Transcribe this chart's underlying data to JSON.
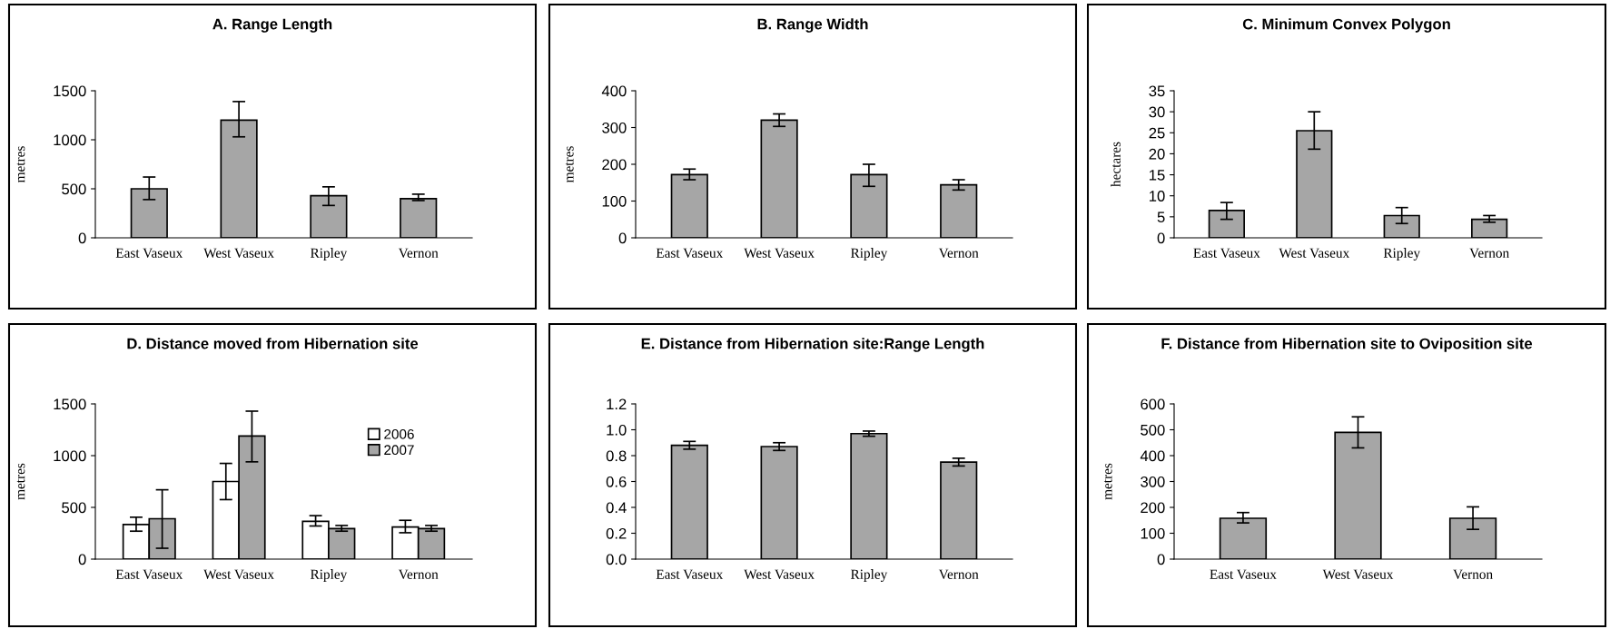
{
  "chart_data": [
    {
      "type": "bar",
      "title": "A. Range Length",
      "ylabel": "metres",
      "categories": [
        "East Vaseux",
        "West Vaseux",
        "Ripley",
        "Vernon"
      ],
      "color": "#a6a6a6",
      "values": [
        500,
        1200,
        430,
        400
      ],
      "errors": [
        [
          390,
          620
        ],
        [
          1030,
          1390
        ],
        [
          330,
          520
        ],
        [
          380,
          445
        ]
      ],
      "ylim": [
        0,
        1500
      ],
      "yticks": [
        0,
        500,
        1000,
        1500
      ],
      "grid": false,
      "legend": false
    },
    {
      "type": "bar",
      "title": "B. Range Width",
      "ylabel": "metres",
      "categories": [
        "East Vaseux",
        "West Vaseux",
        "Ripley",
        "Vernon"
      ],
      "color": "#a6a6a6",
      "values": [
        172,
        320,
        172,
        144
      ],
      "errors": [
        [
          158,
          187
        ],
        [
          303,
          337
        ],
        [
          140,
          200
        ],
        [
          130,
          158
        ]
      ],
      "ylim": [
        0,
        400
      ],
      "yticks": [
        0,
        100,
        200,
        300,
        400
      ],
      "grid": false,
      "legend": false
    },
    {
      "type": "bar",
      "title": "C. Minimum Convex Polygon",
      "ylabel": "hectares",
      "categories": [
        "East Vaseux",
        "West Vaseux",
        "Ripley",
        "Vernon"
      ],
      "color": "#a6a6a6",
      "values": [
        6.5,
        25.5,
        5.3,
        4.4
      ],
      "errors": [
        [
          4.4,
          8.4
        ],
        [
          21.1,
          30
        ],
        [
          3.4,
          7.2
        ],
        [
          3.7,
          5.3
        ]
      ],
      "ylim": [
        0,
        35
      ],
      "yticks": [
        0,
        5,
        10,
        15,
        20,
        25,
        30,
        35
      ],
      "grid": false,
      "legend": false
    },
    {
      "type": "bar",
      "title": "D. Distance moved from Hibernation site",
      "ylabel": "metres",
      "categories": [
        "East Vaseux",
        "West Vaseux",
        "Ripley",
        "Vernon"
      ],
      "series": [
        {
          "name": "2006",
          "color": "#ffffff",
          "values": [
            335,
            750,
            365,
            310
          ],
          "errors": [
            [
              270,
              405
            ],
            [
              575,
              925
            ],
            [
              320,
              420
            ],
            [
              255,
              375
            ]
          ]
        },
        {
          "name": "2007",
          "color": "#a6a6a6",
          "values": [
            390,
            1190,
            295,
            295
          ],
          "errors": [
            [
              105,
              670
            ],
            [
              940,
              1430
            ],
            [
              270,
              325
            ],
            [
              270,
              325
            ]
          ]
        }
      ],
      "ylim": [
        0,
        1500
      ],
      "yticks": [
        0,
        500,
        1000,
        1500
      ],
      "grid": false,
      "legend": "top right"
    },
    {
      "type": "bar",
      "title": "E. Distance from Hibernation site:Range Length",
      "categories": [
        "East Vaseux",
        "West Vaseux",
        "Ripley",
        "Vernon"
      ],
      "color": "#a6a6a6",
      "values": [
        0.88,
        0.87,
        0.97,
        0.75
      ],
      "errors": [
        [
          0.85,
          0.91
        ],
        [
          0.84,
          0.9
        ],
        [
          0.95,
          0.99
        ],
        [
          0.72,
          0.78
        ]
      ],
      "ylim": [
        0,
        1.2
      ],
      "yticks": [
        {
          "value": 0,
          "label": "0.0"
        },
        0.2,
        0.4,
        0.6,
        0.8,
        {
          "value": 1,
          "label": "1.0"
        },
        1.2
      ],
      "grid": false,
      "legend": false
    },
    {
      "type": "bar",
      "title": "F. Distance from Hibernation site to Oviposition site",
      "ylabel": "metres",
      "categories": [
        "East Vaseux",
        "West Vaseux",
        "Vernon"
      ],
      "color": "#a6a6a6",
      "values": [
        158,
        490,
        158
      ],
      "errors": [
        [
          140,
          180
        ],
        [
          430,
          550
        ],
        [
          115,
          202
        ]
      ],
      "ylim": [
        0,
        600
      ],
      "yticks": [
        0,
        100,
        200,
        300,
        400,
        500,
        600
      ],
      "grid": false,
      "legend": false
    }
  ]
}
